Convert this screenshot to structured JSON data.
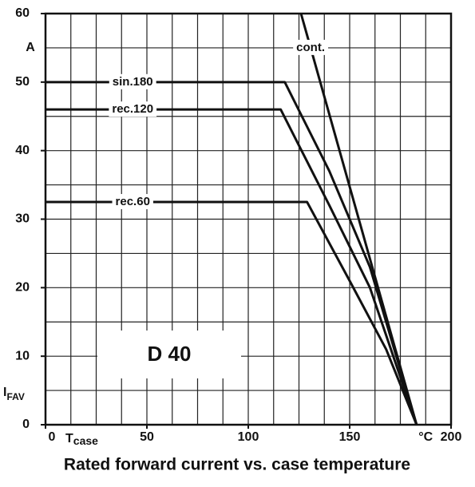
{
  "chart_data": {
    "type": "line",
    "title": "Rated forward current vs. case temperature",
    "annotation": "D 40",
    "x_label": {
      "main": "T",
      "sub": "case"
    },
    "x_unit": "°C",
    "y_label": {
      "main": "I",
      "sub": "FAV"
    },
    "y_unit": "A",
    "xlim": [
      0,
      200
    ],
    "xticks": [
      0,
      50,
      100,
      150,
      200
    ],
    "ylim": [
      0,
      60
    ],
    "yticks": [
      0,
      10,
      20,
      30,
      40,
      50,
      60
    ],
    "xgrid": [
      0,
      12.5,
      25,
      37.5,
      50,
      62.5,
      75,
      87.5,
      100,
      112.5,
      125,
      137.5,
      150,
      162.5,
      175,
      187.5,
      200
    ],
    "ygrid": [
      0,
      5,
      10,
      15,
      20,
      25,
      30,
      35,
      40,
      45,
      50,
      55,
      60
    ],
    "grid": true,
    "series": [
      {
        "name": "cont.",
        "color": "#111111",
        "x": [
          126,
          183
        ],
        "values": [
          60,
          0
        ]
      },
      {
        "name": "sin.180",
        "color": "#111111",
        "x": [
          0,
          118,
          140,
          160,
          183
        ],
        "values": [
          50,
          50,
          37,
          23,
          0
        ]
      },
      {
        "name": "rec.120",
        "color": "#111111",
        "x": [
          0,
          116,
          140,
          160,
          183
        ],
        "values": [
          46,
          46,
          32,
          20,
          0
        ]
      },
      {
        "name": "rec.60",
        "color": "#111111",
        "x": [
          0,
          129,
          150,
          168,
          183
        ],
        "values": [
          32.5,
          32.5,
          21,
          11,
          0
        ]
      }
    ]
  }
}
